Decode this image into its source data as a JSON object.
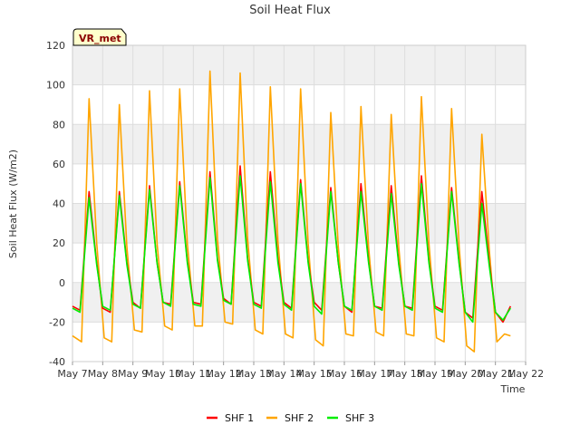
{
  "chart_data": {
    "type": "line",
    "title": "Soil Heat Flux",
    "xlabel": "Time",
    "ylabel": "Soil Heat Flux (W/m2)",
    "station_label": "VR_met",
    "xlim": [
      7,
      22
    ],
    "ylim": [
      -40,
      120
    ],
    "x_ticks": [
      7,
      8,
      9,
      10,
      11,
      12,
      13,
      14,
      15,
      16,
      17,
      18,
      19,
      20,
      21,
      22
    ],
    "x_tick_labels": [
      "May 7",
      "May 8",
      "May 9",
      "May 10",
      "May 11",
      "May 12",
      "May 13",
      "May 14",
      "May 15",
      "May 16",
      "May 17",
      "May 18",
      "May 19",
      "May 20",
      "May 21",
      "May 22"
    ],
    "y_ticks": [
      -40,
      -20,
      0,
      20,
      40,
      60,
      80,
      100,
      120
    ],
    "y_tick_labels": [
      "-40",
      "-20",
      "0",
      "20",
      "40",
      "60",
      "80",
      "100",
      "120"
    ],
    "band_color": "#f0f0f0",
    "grid_color": "#dddddd",
    "series": [
      {
        "name": "SHF 1",
        "color": "#ff0000",
        "x": [
          7.0,
          7.25,
          7.55,
          7.8,
          8.0,
          8.25,
          8.55,
          8.8,
          9.0,
          9.25,
          9.55,
          9.8,
          10.0,
          10.25,
          10.55,
          10.8,
          11.0,
          11.25,
          11.55,
          11.8,
          12.0,
          12.25,
          12.55,
          12.8,
          13.0,
          13.25,
          13.55,
          13.8,
          14.0,
          14.25,
          14.55,
          14.8,
          15.0,
          15.25,
          15.55,
          15.8,
          16.0,
          16.25,
          16.55,
          16.8,
          17.0,
          17.25,
          17.55,
          17.8,
          18.0,
          18.25,
          18.55,
          18.8,
          19.0,
          19.25,
          19.55,
          19.8,
          20.0,
          20.25,
          20.55,
          20.8,
          21.0,
          21.25,
          21.5
        ],
        "y": [
          -12,
          -14,
          46,
          10,
          -13,
          -15,
          46,
          10,
          -10,
          -13,
          49,
          10,
          -10,
          -11,
          51,
          11,
          -10,
          -11,
          56,
          12,
          -8,
          -11,
          59,
          12,
          -10,
          -12,
          56,
          12,
          -10,
          -13,
          52,
          11,
          -10,
          -14,
          48,
          10,
          -12,
          -15,
          50,
          11,
          -12,
          -13,
          49,
          10,
          -12,
          -13,
          54,
          11,
          -12,
          -14,
          48,
          10,
          -15,
          -18,
          46,
          10,
          -15,
          -20,
          -12
        ]
      },
      {
        "name": "SHF 2",
        "color": "#ffa500",
        "x": [
          7.0,
          7.3,
          7.55,
          7.8,
          8.05,
          8.3,
          8.55,
          8.8,
          9.05,
          9.3,
          9.55,
          9.8,
          10.05,
          10.3,
          10.55,
          10.8,
          11.05,
          11.3,
          11.55,
          11.8,
          12.05,
          12.3,
          12.55,
          12.8,
          13.05,
          13.3,
          13.55,
          13.8,
          14.05,
          14.3,
          14.55,
          14.8,
          15.05,
          15.3,
          15.55,
          15.8,
          16.05,
          16.3,
          16.55,
          16.8,
          17.05,
          17.3,
          17.55,
          17.8,
          18.05,
          18.3,
          18.55,
          18.8,
          19.05,
          19.3,
          19.55,
          19.8,
          20.05,
          20.3,
          20.55,
          20.8,
          21.05,
          21.3,
          21.5
        ],
        "y": [
          -27,
          -30,
          93,
          20,
          -28,
          -30,
          90,
          18,
          -24,
          -25,
          97,
          20,
          -22,
          -24,
          98,
          20,
          -22,
          -22,
          107,
          22,
          -20,
          -21,
          106,
          22,
          -24,
          -26,
          99,
          21,
          -26,
          -28,
          98,
          20,
          -29,
          -32,
          86,
          18,
          -26,
          -27,
          89,
          18,
          -25,
          -27,
          85,
          18,
          -26,
          -27,
          94,
          20,
          -28,
          -30,
          88,
          18,
          -32,
          -35,
          75,
          16,
          -30,
          -26,
          -27
        ]
      },
      {
        "name": "SHF 3",
        "color": "#00ee00",
        "x": [
          7.0,
          7.25,
          7.55,
          7.8,
          8.0,
          8.25,
          8.55,
          8.8,
          9.0,
          9.25,
          9.55,
          9.8,
          10.0,
          10.25,
          10.55,
          10.8,
          11.0,
          11.25,
          11.55,
          11.8,
          12.0,
          12.25,
          12.55,
          12.8,
          13.0,
          13.25,
          13.55,
          13.8,
          14.0,
          14.25,
          14.55,
          14.8,
          15.0,
          15.25,
          15.55,
          15.8,
          16.0,
          16.25,
          16.55,
          16.8,
          17.0,
          17.25,
          17.55,
          17.8,
          18.0,
          18.25,
          18.55,
          18.8,
          19.0,
          19.25,
          19.55,
          19.8,
          20.0,
          20.25,
          20.55,
          20.8,
          21.0,
          21.25,
          21.5
        ],
        "y": [
          -13,
          -15,
          43,
          9,
          -12,
          -14,
          44,
          9,
          -11,
          -13,
          47,
          10,
          -10,
          -12,
          49,
          10,
          -11,
          -12,
          53,
          11,
          -9,
          -11,
          54,
          11,
          -11,
          -13,
          51,
          10,
          -11,
          -14,
          50,
          10,
          -12,
          -16,
          46,
          10,
          -12,
          -14,
          46,
          10,
          -12,
          -14,
          45,
          9,
          -12,
          -14,
          50,
          10,
          -13,
          -15,
          46,
          9,
          -15,
          -20,
          40,
          8,
          -15,
          -19,
          -13
        ]
      }
    ]
  }
}
